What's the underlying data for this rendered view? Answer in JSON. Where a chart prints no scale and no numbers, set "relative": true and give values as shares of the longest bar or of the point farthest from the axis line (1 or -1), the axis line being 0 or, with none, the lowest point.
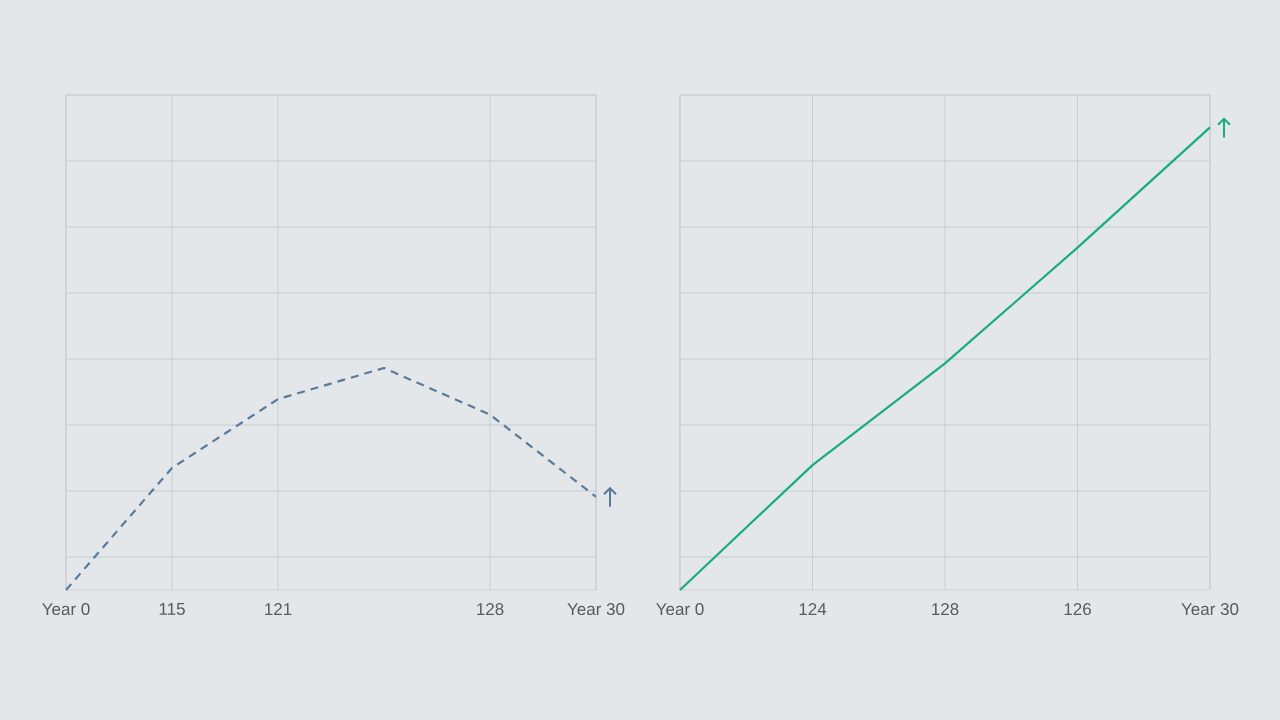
{
  "chart_data": [
    {
      "type": "line",
      "relative": true,
      "categories": [
        "Year 0",
        "115",
        "121",
        null,
        "128",
        "Year 30"
      ],
      "series": [
        {
          "color": "#5b7a99",
          "values": [
            0,
            0.55,
            0.86,
            1,
            0.79,
            0.42
          ]
        }
      ],
      "line_style": "dashed",
      "marker": "none",
      "grid": true
    },
    {
      "type": "line",
      "relative": true,
      "categories": [
        "Year 0",
        "124",
        "128",
        "126",
        "Year 30"
      ],
      "series": [
        {
          "color": "#1aaa80",
          "values": [
            0,
            0.27,
            0.49,
            0.74,
            1
          ]
        }
      ],
      "line_style": "solid",
      "marker": "none",
      "grid": true
    }
  ]
}
